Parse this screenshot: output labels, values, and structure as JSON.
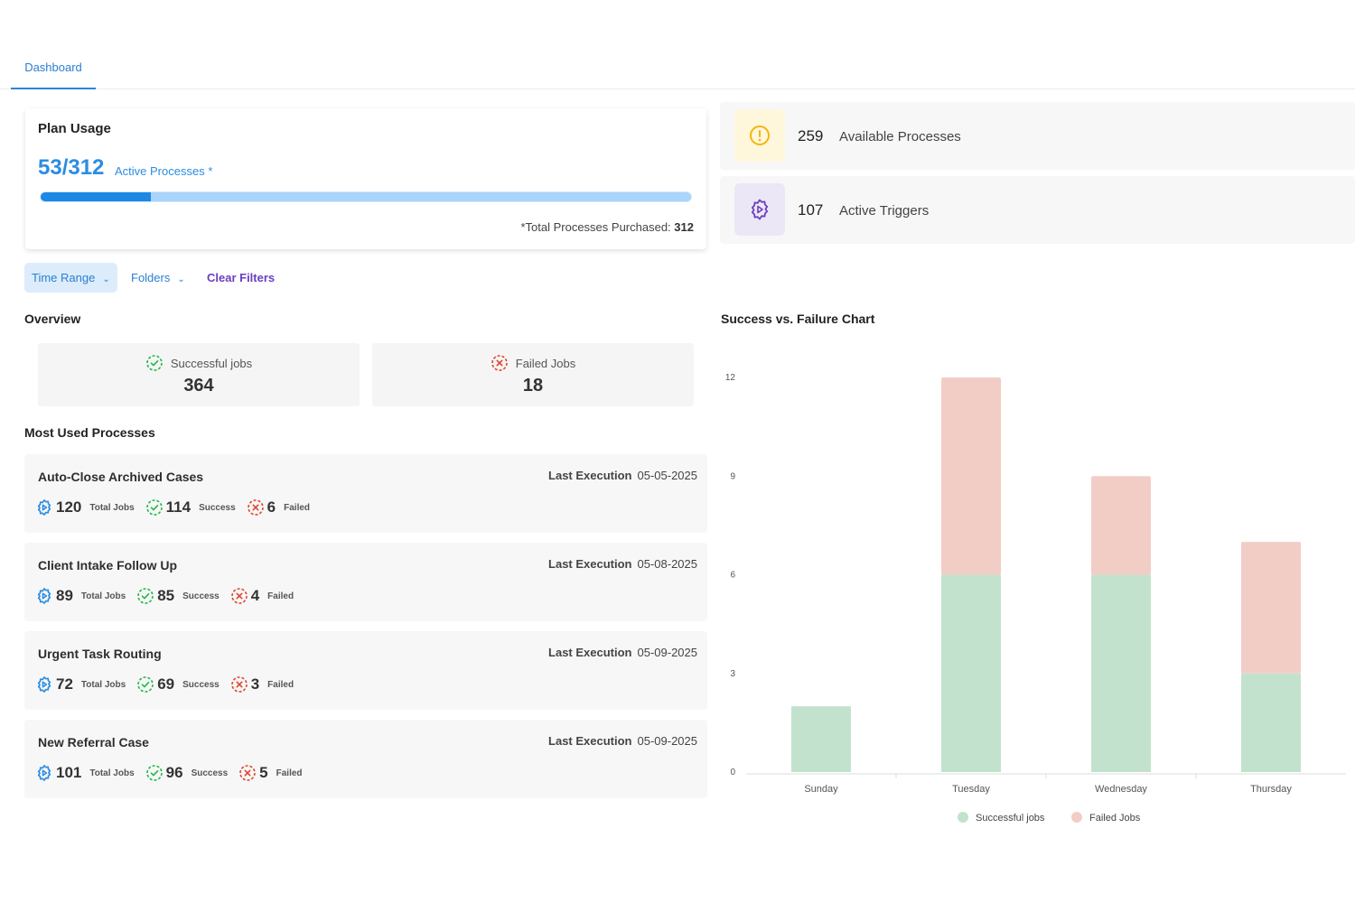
{
  "tabs": {
    "dashboard": "Dashboard"
  },
  "plan": {
    "title": "Plan Usage",
    "count": "53/312",
    "count_label": "Active Processes *",
    "progress_fraction": 0.1699,
    "note_prefix": "*Total Processes Purchased:",
    "note_value": "312"
  },
  "stats": [
    {
      "value": "259",
      "label": "Available Processes",
      "icon": "alert-circle-icon",
      "color": "#f2b705",
      "bg": "#fff7dc"
    },
    {
      "value": "107",
      "label": "Active Triggers",
      "icon": "gear-play-icon",
      "color": "#6a3ec0",
      "bg": "#ece7f7"
    }
  ],
  "filters": {
    "time_range": "Time Range",
    "folders": "Folders",
    "clear": "Clear Filters"
  },
  "overview": {
    "title": "Overview",
    "successful_label": "Successful jobs",
    "successful_value": "364",
    "failed_label": "Failed Jobs",
    "failed_value": "18"
  },
  "processes_title": "Most Used Processes",
  "exec_label": "Last Execution",
  "job_labels": {
    "total": "Total Jobs",
    "success": "Success",
    "failed": "Failed"
  },
  "processes": [
    {
      "name": "Auto-Close Archived Cases",
      "date": "05-05-2025",
      "total": "120",
      "success": "114",
      "failed": "6"
    },
    {
      "name": "Client Intake Follow Up",
      "date": "05-08-2025",
      "total": "89",
      "success": "85",
      "failed": "4"
    },
    {
      "name": "Urgent Task Routing",
      "date": "05-09-2025",
      "total": "72",
      "success": "69",
      "failed": "3"
    },
    {
      "name": "New Referral Case",
      "date": "05-09-2025",
      "total": "101",
      "success": "96",
      "failed": "5"
    }
  ],
  "colors": {
    "accent": "#2b8de3",
    "success": "#22b84a",
    "failed": "#e0452b",
    "purple": "#6a3ec0",
    "bar_success": "#c3e2cd",
    "bar_failed": "#f2cdc6"
  },
  "chart_title": "Success vs. Failure Chart",
  "chart_data": {
    "type": "bar",
    "stacked": true,
    "categories": [
      "Sunday",
      "Tuesday",
      "Wednesday",
      "Thursday"
    ],
    "series": [
      {
        "name": "Successful jobs",
        "values": [
          2,
          6,
          6,
          3
        ],
        "color": "#c3e2cd"
      },
      {
        "name": "Failed Jobs",
        "values": [
          0,
          6,
          3,
          4
        ],
        "color": "#f2cdc6"
      }
    ],
    "yticks": [
      0,
      3,
      6,
      9,
      12
    ],
    "ylim": [
      0,
      12
    ],
    "legend": "bottom"
  }
}
